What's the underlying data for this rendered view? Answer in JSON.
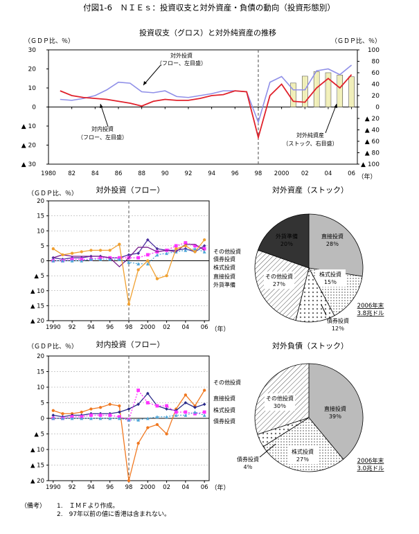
{
  "figure_title": "付図1-6　ＮＩＥｓ：投資収支と対外資産・負債の動向（投資形態別）",
  "notes": {
    "label": "（備考）",
    "items": [
      "1.　ＩＭＦより作成。",
      "2.　97年以前の値に香港は含まれない。"
    ]
  },
  "chart_data": [
    {
      "id": "top",
      "type": "line",
      "title": "投資収支（グロス）と対外純資産の推移",
      "ylabel_left": "（ＧＤＰ比、％）",
      "ylabel_right": "（ＧＤＰ比、％）",
      "xlabel": "（年）",
      "x_tick_labels": [
        "1980",
        "82",
        "84",
        "86",
        "88",
        "90",
        "92",
        "94",
        "96",
        "98",
        "2000",
        "02",
        "04",
        "06"
      ],
      "y_left_ticks": [
        "30",
        "20",
        "10",
        "0",
        "▲ 10",
        "▲ 20",
        "▲ 30"
      ],
      "y_right_ticks": [
        "100",
        "80",
        "60",
        "40",
        "20",
        "0",
        "▲ 20",
        "▲ 40",
        "▲ 60",
        "▲ 80",
        "▲ 100"
      ],
      "ylim_left": [
        -30,
        30
      ],
      "ylim_right": [
        -100,
        100
      ],
      "divider_year": 1998,
      "annotations": [
        {
          "label": "対外投資",
          "sub": "（フロー、左目盛）",
          "points_to": "outward"
        },
        {
          "label": "対内投資",
          "sub": "（フロー、左目盛）",
          "points_to": "inward"
        },
        {
          "label": "対外純資産",
          "sub": "（ストック、右目盛）",
          "points_to": "bars"
        }
      ],
      "series": [
        {
          "key": "outward",
          "color": "#8f8fe8",
          "x": [
            1981,
            1982,
            1983,
            1984,
            1985,
            1986,
            1987,
            1988,
            1989,
            1990,
            1991,
            1992,
            1993,
            1994,
            1995,
            1996,
            1997,
            1998,
            1999,
            2000,
            2001,
            2002,
            2003,
            2004,
            2005,
            2006
          ],
          "y": [
            4,
            3.5,
            4.5,
            6,
            9,
            13,
            12.5,
            8,
            7.5,
            8.5,
            5.5,
            5,
            6,
            7,
            8.5,
            8.5,
            8,
            -8,
            13,
            16,
            9,
            9,
            19,
            20,
            17,
            22
          ]
        },
        {
          "key": "inward",
          "color": "#e0202a",
          "x": [
            1981,
            1982,
            1983,
            1984,
            1985,
            1986,
            1987,
            1988,
            1989,
            1990,
            1991,
            1992,
            1993,
            1994,
            1995,
            1996,
            1997,
            1998,
            1999,
            2000,
            2001,
            2002,
            2003,
            2004,
            2005,
            2006
          ],
          "y": [
            8.5,
            6,
            5,
            4.5,
            4,
            3,
            2,
            0.5,
            3,
            4,
            3.5,
            3.5,
            4.5,
            6,
            6.5,
            8.5,
            8,
            -16,
            6,
            12,
            3,
            2.5,
            10,
            15,
            10,
            17
          ]
        },
        {
          "key": "bars",
          "kind": "bar",
          "axis": "right",
          "color": "#ffffcc",
          "x": [
            2001,
            2002,
            2003,
            2004,
            2005,
            2006
          ],
          "y": [
            42,
            54,
            62,
            60,
            56,
            53
          ]
        }
      ]
    },
    {
      "id": "mid_left",
      "type": "line",
      "title": "対外投資（フロー）",
      "ylabel": "（ＧＤＰ比、％）",
      "xlabel": "（年）",
      "x_tick_labels": [
        "1990",
        "92",
        "94",
        "96",
        "98",
        "2000",
        "02",
        "04",
        "06"
      ],
      "y_ticks": [
        "20",
        "15",
        "10",
        "5",
        "0",
        "▲ 5",
        "▲ 10",
        "▲ 15",
        "▲ 20"
      ],
      "ylim": [
        -20,
        20
      ],
      "divider_year": 1998,
      "legend_right": [
        "その他投資",
        "債券投資",
        "株式投資",
        "直接投資",
        "外貨準備"
      ],
      "series": [
        {
          "name": "その他投資",
          "color": "#4b2e9e",
          "marker": "diamond",
          "x": [
            1990,
            1991,
            1992,
            1993,
            1994,
            1995,
            1996,
            1997,
            1998,
            1999,
            2000,
            2001,
            2002,
            2003,
            2004,
            2005,
            2006
          ],
          "y": [
            1,
            0.5,
            1,
            1,
            1.5,
            1.5,
            1,
            1,
            2,
            2.5,
            7,
            4,
            3.5,
            3.5,
            4,
            3,
            5
          ]
        },
        {
          "name": "債券投資",
          "color": "#ff33ff",
          "marker": "square",
          "x": [
            1990,
            1991,
            1992,
            1993,
            1994,
            1995,
            1996,
            1997,
            1998,
            1999,
            2000,
            2001,
            2002,
            2003,
            2004,
            2005,
            2006
          ],
          "y": [
            0,
            0,
            0.5,
            0.5,
            0.5,
            1,
            1,
            1,
            1,
            1,
            2,
            3,
            3.5,
            5,
            6,
            5,
            4
          ]
        },
        {
          "name": "株式投資",
          "color": "#4fa6d8",
          "marker": "triangle",
          "x": [
            1990,
            1991,
            1992,
            1993,
            1994,
            1995,
            1996,
            1997,
            1998,
            1999,
            2000,
            2001,
            2002,
            2003,
            2004,
            2005,
            2006
          ],
          "y": [
            0,
            0,
            0,
            0,
            0.5,
            0.5,
            0.5,
            0.5,
            -0.5,
            -1,
            -1,
            2,
            2.5,
            3,
            3.5,
            4,
            3
          ]
        },
        {
          "name": "直接投資",
          "color": "#7a1f8e",
          "marker": "none",
          "x": [
            1990,
            1991,
            1992,
            1993,
            1994,
            1995,
            1996,
            1997,
            1998,
            1999,
            2000,
            2001,
            2002,
            2003,
            2004,
            2005,
            2006
          ],
          "y": [
            1,
            2,
            1.5,
            1.5,
            1.5,
            1.5,
            1,
            -2,
            1,
            4.5,
            4.5,
            3,
            3.5,
            3,
            5.5,
            5.5,
            3.5
          ]
        },
        {
          "name": "外貨準備",
          "color": "#f0a030",
          "marker": "circle",
          "x": [
            1990,
            1991,
            1992,
            1993,
            1994,
            1995,
            1996,
            1997,
            1998,
            1999,
            2000,
            2001,
            2002,
            2003,
            2004,
            2005,
            2006
          ],
          "y": [
            4,
            2,
            2.5,
            3,
            3.5,
            3.5,
            3.5,
            5.5,
            -14.5,
            -3,
            0,
            -6,
            -5,
            4,
            5,
            3,
            7
          ]
        }
      ]
    },
    {
      "id": "mid_right",
      "type": "pie",
      "title": "対外資産（ストック）",
      "note_lines": [
        "2006年末",
        "3.8兆ドル"
      ],
      "slices": [
        {
          "label": "直接投資",
          "value": 28,
          "pct_label": "28％",
          "fill": "#bbbbbb"
        },
        {
          "label": "株式投資",
          "value": 15,
          "pct_label": "15％",
          "fill": "dots"
        },
        {
          "label": "債券投資",
          "value": 12,
          "pct_label": "12％",
          "fill": "crosses"
        },
        {
          "label": "その他投資",
          "value": 27,
          "pct_label": "27％",
          "fill": "hatch"
        },
        {
          "label": "外貨準備",
          "value": 20,
          "pct_label": "20％",
          "fill": "#333333"
        }
      ]
    },
    {
      "id": "bot_left",
      "type": "line",
      "title": "対内投資（フロー）",
      "ylabel": "（ＧＤＰ比、％）",
      "xlabel": "（年）",
      "x_tick_labels": [
        "1990",
        "92",
        "94",
        "96",
        "98",
        "2000",
        "02",
        "04",
        "06"
      ],
      "y_ticks": [
        "20",
        "15",
        "10",
        "5",
        "0",
        "▲ 5",
        "▲ 10",
        "▲ 15",
        "▲ 20"
      ],
      "ylim": [
        -20,
        20
      ],
      "divider_year": 1998,
      "legend_right": [
        "その他投資",
        "直接投資",
        "株式投資",
        "債券投資"
      ],
      "series": [
        {
          "name": "その他投資",
          "color": "#f07820",
          "marker": "circle",
          "x": [
            1990,
            1991,
            1992,
            1993,
            1994,
            1995,
            1996,
            1997,
            1998,
            1999,
            2000,
            2001,
            2002,
            2003,
            2004,
            2005,
            2006
          ],
          "y": [
            2.5,
            1.5,
            1.5,
            2,
            3,
            3.5,
            4.5,
            4,
            -20,
            -8,
            -3,
            -2,
            -5,
            3,
            7.5,
            4,
            9
          ]
        },
        {
          "name": "直接投資",
          "color": "#2a2a8a",
          "marker": "diamond",
          "x": [
            1990,
            1991,
            1992,
            1993,
            1994,
            1995,
            1996,
            1997,
            1998,
            1999,
            2000,
            2001,
            2002,
            2003,
            2004,
            2005,
            2006
          ],
          "y": [
            1,
            0.5,
            1,
            1,
            1.5,
            1.5,
            1.5,
            2,
            3,
            4.5,
            8,
            4,
            3,
            2.5,
            5,
            3.5,
            4.5
          ]
        },
        {
          "name": "株式投資",
          "color": "#ff33ff",
          "marker": "square",
          "x": [
            1990,
            1991,
            1992,
            1993,
            1994,
            1995,
            1996,
            1997,
            1998,
            1999,
            2000,
            2001,
            2002,
            2003,
            2004,
            2005,
            2006
          ],
          "y": [
            0,
            0,
            0.5,
            0.5,
            1,
            1,
            1,
            0.5,
            -0.5,
            9,
            5,
            4,
            4,
            2,
            2,
            1.5,
            2
          ]
        },
        {
          "name": "債券投資",
          "color": "#4fa6d8",
          "marker": "triangle",
          "x": [
            1990,
            1991,
            1992,
            1993,
            1994,
            1995,
            1996,
            1997,
            1998,
            1999,
            2000,
            2001,
            2002,
            2003,
            2004,
            2005,
            2006
          ],
          "y": [
            0,
            0,
            0,
            0,
            0,
            0,
            0,
            0,
            -0.5,
            -0.5,
            0,
            0.5,
            0.5,
            1,
            1,
            2,
            1
          ]
        }
      ]
    },
    {
      "id": "bot_right",
      "type": "pie",
      "title": "対外負債（ストック）",
      "note_lines": [
        "2006年末",
        "3.0兆ドル"
      ],
      "slices": [
        {
          "label": "直接投資",
          "value": 39,
          "pct_label": "39％",
          "fill": "#bbbbbb"
        },
        {
          "label": "株式投資",
          "value": 27,
          "pct_label": "27％",
          "fill": "dots"
        },
        {
          "label": "債券投資",
          "value": 4,
          "pct_label": "4％",
          "fill": "crosses"
        },
        {
          "label": "その他投資",
          "value": 30,
          "pct_label": "30％",
          "fill": "hatch"
        }
      ]
    }
  ]
}
